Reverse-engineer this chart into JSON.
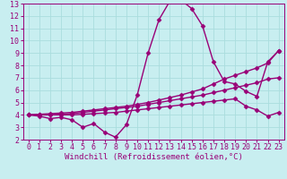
{
  "bg_color": "#c8eef0",
  "grid_color": "#aadddd",
  "line_color": "#990077",
  "marker": "D",
  "markersize": 2.5,
  "linewidth": 1.0,
  "xlabel": "Windchill (Refroidissement éolien,°C)",
  "xlabel_fontsize": 6.5,
  "tick_fontsize": 6,
  "xlim": [
    -0.5,
    23.5
  ],
  "ylim": [
    2,
    13
  ],
  "yticks": [
    2,
    3,
    4,
    5,
    6,
    7,
    8,
    9,
    10,
    11,
    12,
    13
  ],
  "xticks": [
    0,
    1,
    2,
    3,
    4,
    5,
    6,
    7,
    8,
    9,
    10,
    11,
    12,
    13,
    14,
    15,
    16,
    17,
    18,
    19,
    20,
    21,
    22,
    23
  ],
  "curves": [
    {
      "x": [
        0,
        1,
        2,
        3,
        4,
        5,
        6,
        7,
        8,
        9,
        10,
        11,
        12,
        13,
        14,
        15,
        16,
        17,
        18,
        19,
        20,
        21,
        22,
        23
      ],
      "y": [
        4.0,
        3.9,
        3.7,
        3.8,
        3.6,
        3.0,
        3.3,
        2.6,
        2.2,
        3.2,
        5.6,
        9.0,
        11.7,
        13.2,
        13.3,
        12.6,
        11.2,
        8.3,
        6.7,
        6.5,
        5.9,
        5.5,
        8.3,
        9.2
      ]
    },
    {
      "x": [
        0,
        1,
        2,
        3,
        4,
        5,
        6,
        7,
        8,
        9,
        10,
        11,
        12,
        13,
        14,
        15,
        16,
        17,
        18,
        19,
        20,
        21,
        22,
        23
      ],
      "y": [
        4.0,
        4.05,
        4.1,
        4.15,
        4.2,
        4.3,
        4.4,
        4.5,
        4.6,
        4.7,
        4.85,
        5.0,
        5.2,
        5.4,
        5.6,
        5.85,
        6.1,
        6.5,
        6.9,
        7.2,
        7.5,
        7.8,
        8.2,
        9.2
      ]
    },
    {
      "x": [
        0,
        1,
        2,
        3,
        4,
        5,
        6,
        7,
        8,
        9,
        10,
        11,
        12,
        13,
        14,
        15,
        16,
        17,
        18,
        19,
        20,
        21,
        22,
        23
      ],
      "y": [
        4.0,
        4.0,
        4.0,
        4.05,
        4.1,
        4.2,
        4.3,
        4.4,
        4.5,
        4.6,
        4.7,
        4.85,
        5.0,
        5.15,
        5.3,
        5.45,
        5.6,
        5.8,
        6.0,
        6.2,
        6.4,
        6.6,
        6.9,
        7.0
      ]
    },
    {
      "x": [
        0,
        1,
        2,
        3,
        4,
        5,
        6,
        7,
        8,
        9,
        10,
        11,
        12,
        13,
        14,
        15,
        16,
        17,
        18,
        19,
        20,
        21,
        22,
        23
      ],
      "y": [
        4.0,
        4.0,
        4.0,
        4.0,
        4.0,
        4.05,
        4.1,
        4.15,
        4.2,
        4.3,
        4.4,
        4.5,
        4.6,
        4.7,
        4.8,
        4.9,
        5.0,
        5.1,
        5.2,
        5.3,
        4.7,
        4.4,
        3.9,
        4.2
      ]
    }
  ]
}
